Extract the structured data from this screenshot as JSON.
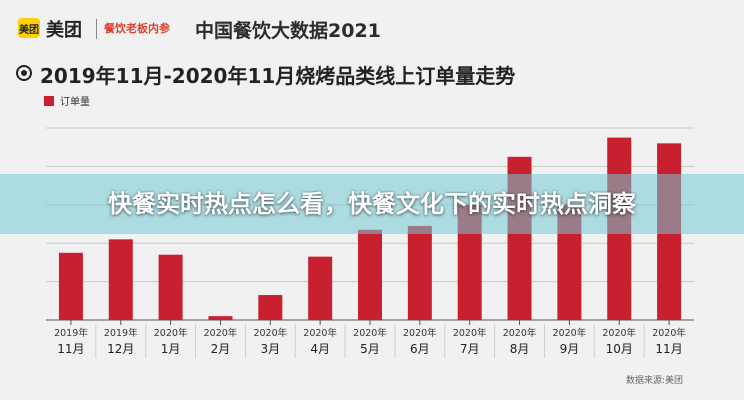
{
  "header": {
    "brand_badge": "美团",
    "brand_name": "美团",
    "brand_sub": "餐饮老板内参",
    "report_title": "中国餐饮大数据2021"
  },
  "overlay": {
    "headline": "快餐实时热点怎么看，快餐文化下的实时热点洞察"
  },
  "source": "数据来源:美团",
  "chart_data": {
    "type": "bar",
    "title": "2019年11月-2020年11月烧烤品类线上订单量走势",
    "legend": [
      "订单量"
    ],
    "bar_color": "#c8202e",
    "grid": true,
    "ylim": [
      0,
      100
    ],
    "categories": [
      {
        "year": "2019年",
        "month": "11月"
      },
      {
        "year": "2019年",
        "month": "12月"
      },
      {
        "year": "2020年",
        "month": "1月"
      },
      {
        "year": "2020年",
        "month": "2月"
      },
      {
        "year": "2020年",
        "month": "3月"
      },
      {
        "year": "2020年",
        "month": "4月"
      },
      {
        "year": "2020年",
        "month": "5月"
      },
      {
        "year": "2020年",
        "month": "6月"
      },
      {
        "year": "2020年",
        "month": "7月"
      },
      {
        "year": "2020年",
        "month": "8月"
      },
      {
        "year": "2020年",
        "month": "9月"
      },
      {
        "year": "2020年",
        "month": "10月"
      },
      {
        "year": "2020年",
        "month": "11月"
      }
    ],
    "series": [
      {
        "name": "订单量",
        "values": [
          35,
          42,
          34,
          2,
          13,
          33,
          47,
          49,
          60,
          85,
          60,
          95,
          92
        ]
      }
    ]
  }
}
